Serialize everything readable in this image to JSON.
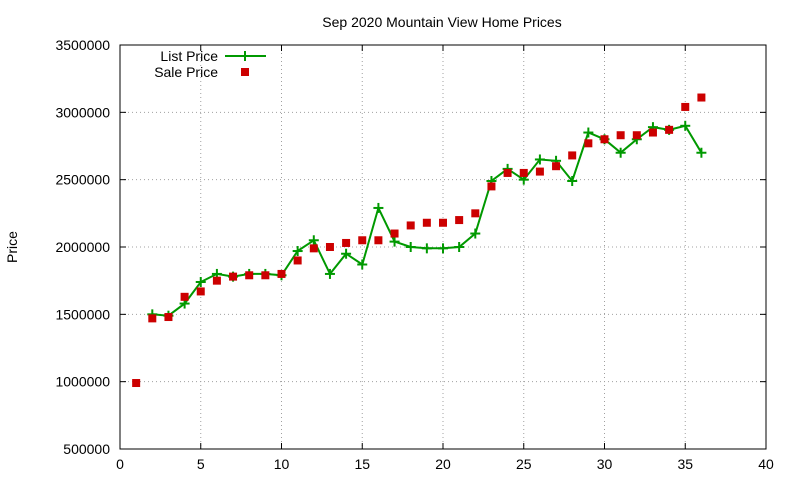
{
  "chart_data": {
    "type": "line",
    "title": "Sep 2020 Mountain View Home Prices",
    "xlabel": "",
    "ylabel": "Price",
    "xlim": [
      0,
      40
    ],
    "ylim": [
      500000,
      3500000
    ],
    "x_ticks": [
      "0",
      "5",
      "10",
      "15",
      "20",
      "25",
      "30",
      "35",
      "40"
    ],
    "y_ticks": [
      "500000",
      "1000000",
      "1500000",
      "2000000",
      "2500000",
      "3000000",
      "3500000"
    ],
    "grid": true,
    "legend_position": "top-left",
    "series": [
      {
        "name": "List Price",
        "style": "line+plus",
        "color": "#009900",
        "points": [
          [
            2,
            1500000
          ],
          [
            3,
            1490000
          ],
          [
            4,
            1580000
          ],
          [
            5,
            1740000
          ],
          [
            6,
            1800000
          ],
          [
            7,
            1780000
          ],
          [
            8,
            1800000
          ],
          [
            9,
            1800000
          ],
          [
            10,
            1790000
          ],
          [
            11,
            1970000
          ],
          [
            12,
            2050000
          ],
          [
            13,
            1800000
          ],
          [
            14,
            1950000
          ],
          [
            15,
            1870000
          ],
          [
            16,
            2290000
          ],
          [
            17,
            2040000
          ],
          [
            18,
            2000000
          ],
          [
            19,
            1990000
          ],
          [
            20,
            1990000
          ],
          [
            21,
            2000000
          ],
          [
            22,
            2100000
          ],
          [
            23,
            2490000
          ],
          [
            24,
            2580000
          ],
          [
            25,
            2500000
          ],
          [
            26,
            2650000
          ],
          [
            27,
            2640000
          ],
          [
            28,
            2490000
          ],
          [
            29,
            2850000
          ],
          [
            30,
            2800000
          ],
          [
            31,
            2700000
          ],
          [
            32,
            2800000
          ],
          [
            33,
            2890000
          ],
          [
            34,
            2870000
          ],
          [
            35,
            2900000
          ],
          [
            36,
            2700000
          ]
        ]
      },
      {
        "name": "Sale Price",
        "style": "square",
        "color": "#cc0000",
        "points": [
          [
            1,
            990000
          ],
          [
            2,
            1470000
          ],
          [
            3,
            1480000
          ],
          [
            4,
            1630000
          ],
          [
            5,
            1670000
          ],
          [
            6,
            1750000
          ],
          [
            7,
            1780000
          ],
          [
            8,
            1790000
          ],
          [
            9,
            1790000
          ],
          [
            10,
            1800000
          ],
          [
            11,
            1900000
          ],
          [
            12,
            1990000
          ],
          [
            13,
            2000000
          ],
          [
            14,
            2030000
          ],
          [
            15,
            2050000
          ],
          [
            16,
            2050000
          ],
          [
            17,
            2100000
          ],
          [
            18,
            2160000
          ],
          [
            19,
            2180000
          ],
          [
            20,
            2180000
          ],
          [
            21,
            2200000
          ],
          [
            22,
            2250000
          ],
          [
            23,
            2450000
          ],
          [
            24,
            2550000
          ],
          [
            25,
            2550000
          ],
          [
            26,
            2560000
          ],
          [
            27,
            2600000
          ],
          [
            28,
            2680000
          ],
          [
            29,
            2770000
          ],
          [
            30,
            2800000
          ],
          [
            31,
            2830000
          ],
          [
            32,
            2830000
          ],
          [
            33,
            2850000
          ],
          [
            34,
            2870000
          ],
          [
            35,
            3040000
          ],
          [
            36,
            3110000
          ]
        ]
      }
    ]
  }
}
